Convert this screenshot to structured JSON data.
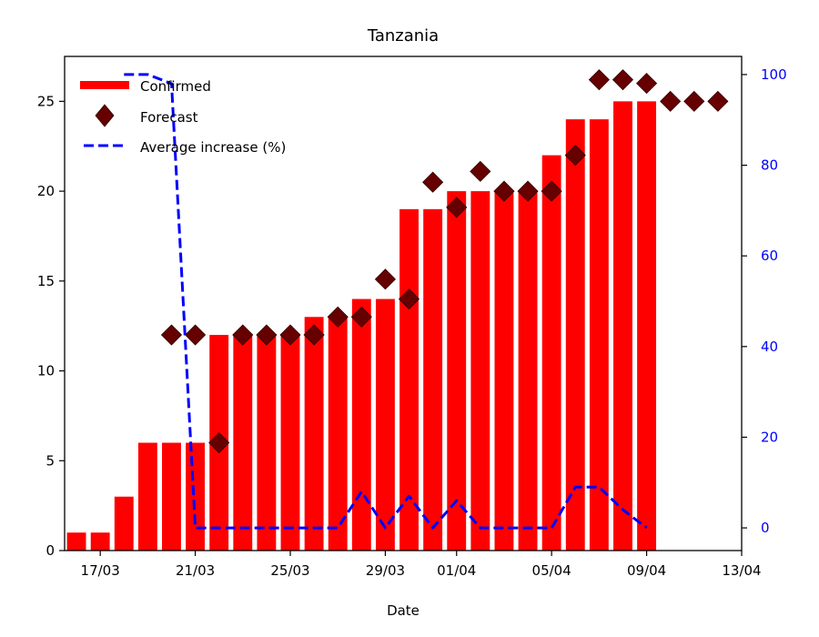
{
  "chart_data": {
    "type": "bar",
    "title": "Tanzania",
    "xlabel": "Date",
    "ylabel": "",
    "ylabel_right": "",
    "x_tick_labels": [
      "17/03",
      "21/03",
      "25/03",
      "29/03",
      "01/04",
      "05/04",
      "09/04",
      "13/04"
    ],
    "y_ticks_left": [
      "0",
      "5",
      "10",
      "15",
      "20",
      "25"
    ],
    "y_ticks_right": [
      "0",
      "20",
      "40",
      "60",
      "80",
      "100"
    ],
    "ylim_left": [
      0,
      27.5
    ],
    "ylim_right": [
      -5,
      104
    ],
    "legend": {
      "placement": "upper-left",
      "entries": [
        "Confirmed",
        "Forecast",
        "Average increase (%)"
      ]
    },
    "colors": {
      "confirmed": "#ff0000",
      "forecast": "#660000",
      "average": "#0000ff",
      "right_axis": "#0000ff"
    },
    "series": [
      {
        "name": "Confirmed",
        "kind": "bar",
        "axis": "left",
        "points": [
          {
            "date": "16/03",
            "value": 1
          },
          {
            "date": "17/03",
            "value": 1
          },
          {
            "date": "18/03",
            "value": 3
          },
          {
            "date": "19/03",
            "value": 6
          },
          {
            "date": "20/03",
            "value": 6
          },
          {
            "date": "21/03",
            "value": 6
          },
          {
            "date": "22/03",
            "value": 12
          },
          {
            "date": "23/03",
            "value": 12
          },
          {
            "date": "24/03",
            "value": 12
          },
          {
            "date": "25/03",
            "value": 12
          },
          {
            "date": "26/03",
            "value": 13
          },
          {
            "date": "27/03",
            "value": 13
          },
          {
            "date": "28/03",
            "value": 14
          },
          {
            "date": "29/03",
            "value": 14
          },
          {
            "date": "30/03",
            "value": 19
          },
          {
            "date": "31/03",
            "value": 19
          },
          {
            "date": "01/04",
            "value": 20
          },
          {
            "date": "02/04",
            "value": 20
          },
          {
            "date": "03/04",
            "value": 20
          },
          {
            "date": "04/04",
            "value": 20
          },
          {
            "date": "05/04",
            "value": 22
          },
          {
            "date": "06/04",
            "value": 24
          },
          {
            "date": "07/04",
            "value": 24
          },
          {
            "date": "08/04",
            "value": 25
          },
          {
            "date": "09/04",
            "value": 25
          }
        ]
      },
      {
        "name": "Forecast",
        "kind": "scatter",
        "axis": "left",
        "points": [
          {
            "date": "20/03",
            "value": 12
          },
          {
            "date": "21/03",
            "value": 12
          },
          {
            "date": "22/03",
            "value": 6
          },
          {
            "date": "23/03",
            "value": 12
          },
          {
            "date": "24/03",
            "value": 12
          },
          {
            "date": "25/03",
            "value": 12
          },
          {
            "date": "26/03",
            "value": 12
          },
          {
            "date": "27/03",
            "value": 13
          },
          {
            "date": "28/03",
            "value": 13
          },
          {
            "date": "29/03",
            "value": 15.1
          },
          {
            "date": "30/03",
            "value": 14
          },
          {
            "date": "31/03",
            "value": 20.5
          },
          {
            "date": "01/04",
            "value": 19.1
          },
          {
            "date": "02/04",
            "value": 21.1
          },
          {
            "date": "03/04",
            "value": 20
          },
          {
            "date": "04/04",
            "value": 20
          },
          {
            "date": "05/04",
            "value": 20
          },
          {
            "date": "06/04",
            "value": 22
          },
          {
            "date": "07/04",
            "value": 26.2
          },
          {
            "date": "08/04",
            "value": 26.2
          },
          {
            "date": "09/04",
            "value": 26
          },
          {
            "date": "10/04",
            "value": 25
          },
          {
            "date": "11/04",
            "value": 25
          },
          {
            "date": "12/04",
            "value": 25
          }
        ]
      },
      {
        "name": "Average increase (%)",
        "kind": "line",
        "axis": "right",
        "style": "dashed",
        "points": [
          {
            "date": "18/03",
            "value": 100
          },
          {
            "date": "19/03",
            "value": 100
          },
          {
            "date": "20/03",
            "value": 98
          },
          {
            "date": "21/03",
            "value": 0
          },
          {
            "date": "22/03",
            "value": 0
          },
          {
            "date": "23/03",
            "value": 0
          },
          {
            "date": "24/03",
            "value": 0
          },
          {
            "date": "25/03",
            "value": 0
          },
          {
            "date": "26/03",
            "value": 0
          },
          {
            "date": "27/03",
            "value": 0
          },
          {
            "date": "28/03",
            "value": 8
          },
          {
            "date": "29/03",
            "value": 0
          },
          {
            "date": "30/03",
            "value": 7
          },
          {
            "date": "31/03",
            "value": 0
          },
          {
            "date": "01/04",
            "value": 6
          },
          {
            "date": "02/04",
            "value": 0
          },
          {
            "date": "03/04",
            "value": 0
          },
          {
            "date": "04/04",
            "value": 0
          },
          {
            "date": "05/04",
            "value": 0
          },
          {
            "date": "06/04",
            "value": 9
          },
          {
            "date": "07/04",
            "value": 9
          },
          {
            "date": "08/04",
            "value": 4
          },
          {
            "date": "09/04",
            "value": 0
          }
        ]
      }
    ]
  }
}
